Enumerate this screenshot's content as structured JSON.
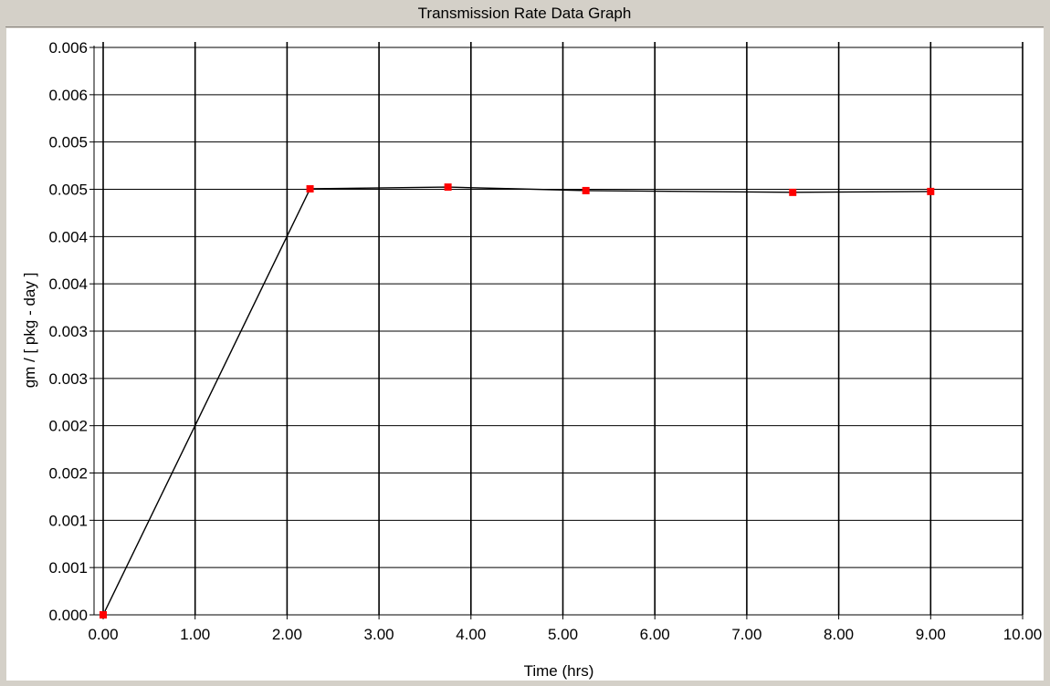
{
  "window": {
    "title": "Transmission Rate Data Graph"
  },
  "colors": {
    "background": "#d4d0c8",
    "plot": "#ffffff",
    "grid": "#000000",
    "line": "#000000",
    "marker": "#ff0000"
  },
  "chart_data": {
    "type": "line",
    "title": "Transmission Rate Data Graph",
    "xlabel": "Time (hrs)",
    "ylabel": "gm / [ pkg - day ]",
    "xlim": [
      0,
      10
    ],
    "ylim": [
      0,
      0.0065
    ],
    "grid": true,
    "x_ticks": [
      "0.00",
      "1.00",
      "2.00",
      "3.00",
      "4.00",
      "5.00",
      "6.00",
      "7.00",
      "8.00",
      "9.00",
      "10.00"
    ],
    "y_ticks": [
      "0.000",
      "0.001",
      "0.001",
      "0.002",
      "0.002",
      "0.003",
      "0.003",
      "0.004",
      "0.004",
      "0.005",
      "0.005",
      "0.006",
      "0.006"
    ],
    "series": [
      {
        "x": [
          0.0,
          2.25,
          3.75,
          5.25,
          7.5,
          9.0
        ],
        "y": [
          0.0,
          0.00488,
          0.0049,
          0.00486,
          0.00484,
          0.00485
        ]
      }
    ]
  }
}
